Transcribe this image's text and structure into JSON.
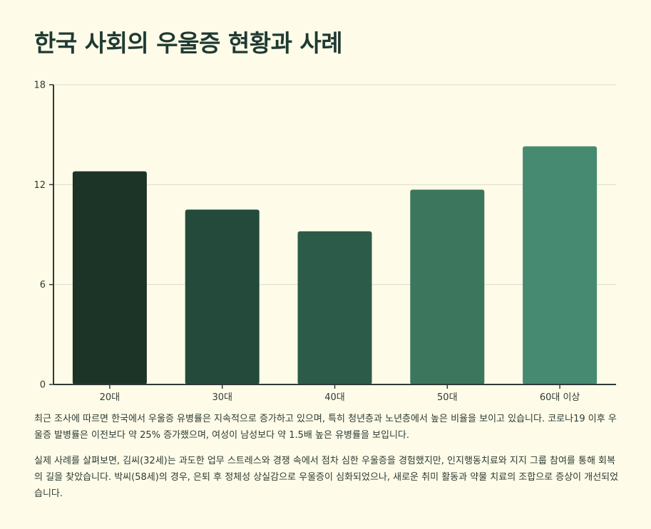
{
  "title": "한국 사회의 우울증 현황과 사례",
  "chart_data": {
    "type": "bar",
    "title": "",
    "xlabel": "",
    "ylabel": "",
    "categories": [
      "20대",
      "30대",
      "40대",
      "50대",
      "60대 이상"
    ],
    "values": [
      12.8,
      10.5,
      9.2,
      11.7,
      14.3
    ],
    "ylim": [
      0,
      18
    ],
    "yticks": [
      0,
      6,
      12,
      18
    ],
    "grid": true,
    "colors": [
      "#1c3328",
      "#244a3b",
      "#2c5c49",
      "#3b765d",
      "#478a72"
    ]
  },
  "paragraphs": [
    "최근 조사에 따르면 한국에서 우울증 유병률은 지속적으로 증가하고 있으며, 특히 청년층과 노년층에서 높은 비율을 보이고 있습니다. 코로나19 이후 우울증 발병률은 이전보다 약 25% 증가했으며, 여성이 남성보다 약 1.5배 높은 유병률을 보입니다.",
    "실제 사례를 살펴보면, 김씨(32세)는 과도한 업무 스트레스와 경쟁 속에서 점차 심한 우울증을 경험했지만, 인지행동치료와 지지 그룹 참여를 통해 회복의 길을 찾았습니다. 박씨(58세)의 경우, 은퇴 후 정체성 상실감으로 우울증이 심화되었으나, 새로운 취미 활동과 약물 치료의 조합으로 증상이 개선되었습니다."
  ]
}
